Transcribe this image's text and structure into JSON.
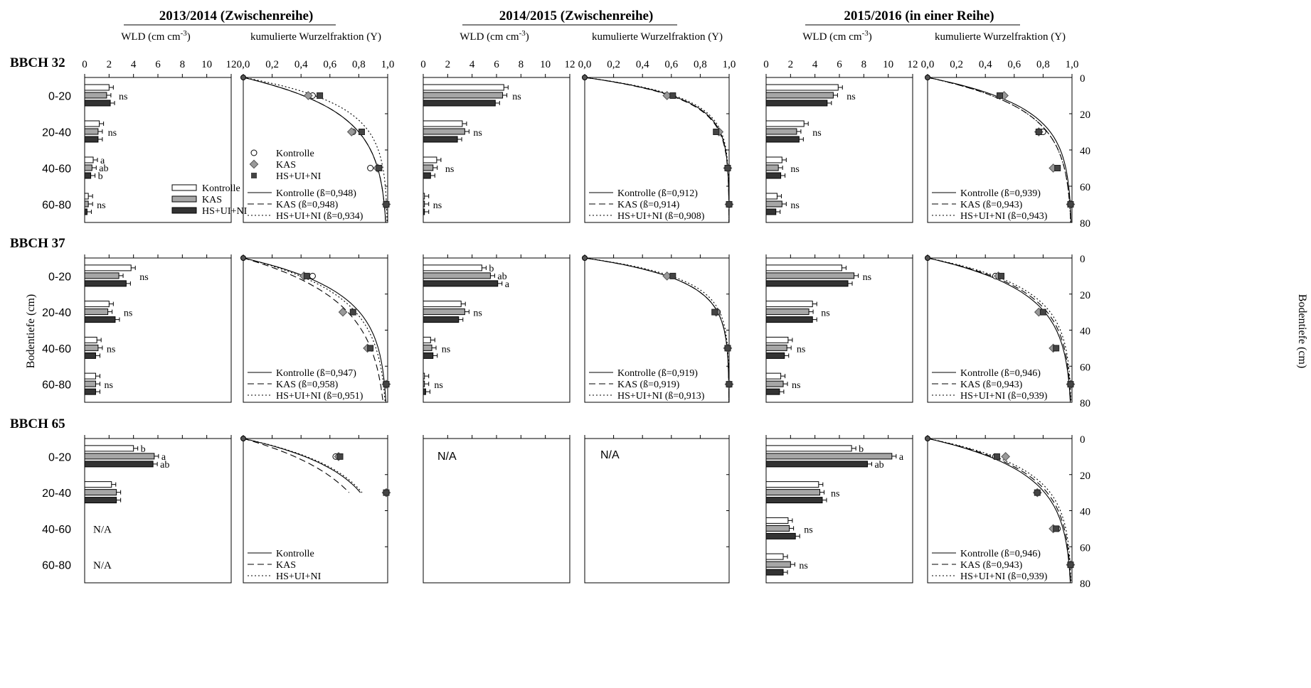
{
  "figure": {
    "seasons": [
      "2013/2014 (Zwischenreihe)",
      "2014/2015 (Zwischenreihe)",
      "2015/2016 (in einer Reihe)"
    ],
    "wld_axis_label": "WLD (cm cm",
    "wld_axis_exp": "-3",
    "wld_axis_close": ")",
    "cum_axis_label": "kumulierte Wurzelfraktion (Y)",
    "stages": [
      "BBCH 32",
      "BBCH 37",
      "BBCH 65"
    ],
    "depth_label_left": "Bodentiefe (cm)",
    "depth_label_right": "Bodentiefe (cm)",
    "depth_categories": [
      "0-20",
      "20-40",
      "40-60",
      "60-80"
    ],
    "wld_ticks": [
      "0",
      "2",
      "4",
      "6",
      "8",
      "10",
      "12"
    ],
    "cum_ticks": [
      "0,0",
      "0,2",
      "0,4",
      "0,6",
      "0,8",
      "1,0"
    ],
    "depth_ticks": [
      "0",
      "20",
      "40",
      "60",
      "80"
    ],
    "na_label": "N/A",
    "treatments": [
      "Kontrolle",
      "KAS",
      "HS+UI+NI"
    ],
    "colors": {
      "Kontrolle": "#ffffff",
      "KAS": "#a6a6a6",
      "HS+UI+NI": "#333333"
    }
  },
  "chart_data": [
    {
      "type": "bar",
      "stage": "BBCH 32",
      "season": "2013/2014 (Zwischenreihe)",
      "orientation": "horizontal",
      "xlim": [
        0,
        12
      ],
      "categories": [
        "0-20",
        "20-40",
        "40-60",
        "60-80"
      ],
      "series": [
        {
          "name": "Kontrolle",
          "values": [
            2.0,
            1.2,
            0.7,
            0.3
          ]
        },
        {
          "name": "KAS",
          "values": [
            1.8,
            1.1,
            0.6,
            0.3
          ]
        },
        {
          "name": "HS+UI+NI",
          "values": [
            2.1,
            1.1,
            0.5,
            0.2
          ]
        }
      ],
      "labels": [
        "ns",
        "ns",
        [
          "a",
          "ab",
          "b"
        ],
        "ns"
      ]
    },
    {
      "type": "line",
      "stage": "BBCH 32",
      "season": "2013/2014 (Zwischenreihe)",
      "xlim": [
        0,
        1
      ],
      "ylim": [
        80,
        0
      ],
      "points": [
        {
          "name": "Kontrolle",
          "x": [
            0.48,
            0.76,
            0.88,
            0.99
          ],
          "y": [
            10,
            30,
            50,
            70
          ]
        },
        {
          "name": "KAS",
          "x": [
            0.45,
            0.75,
            0.93,
            0.99
          ],
          "y": [
            10,
            30,
            50,
            70
          ]
        },
        {
          "name": "HS+UI+NI",
          "x": [
            0.53,
            0.82,
            0.94,
            0.99
          ],
          "y": [
            10,
            30,
            50,
            70
          ]
        }
      ],
      "legend_points": [
        "Kontrolle",
        "KAS",
        "HS+UI+NI"
      ],
      "curves": [
        {
          "name": "Kontrolle",
          "beta": 0.948,
          "label": "Kontrolle (ß=0,948)"
        },
        {
          "name": "KAS",
          "beta": 0.948,
          "label": "KAS (ß=0,948)"
        },
        {
          "name": "HS+UI+NI",
          "beta": 0.934,
          "label": "HS+UI+NI (ß=0,934)"
        }
      ]
    },
    {
      "type": "bar",
      "stage": "BBCH 32",
      "season": "2014/2015 (Zwischenreihe)",
      "orientation": "horizontal",
      "xlim": [
        0,
        12
      ],
      "categories": [
        "0-20",
        "20-40",
        "40-60",
        "60-80"
      ],
      "series": [
        {
          "name": "Kontrolle",
          "values": [
            6.6,
            3.2,
            1.1,
            0.1
          ]
        },
        {
          "name": "KAS",
          "values": [
            6.5,
            3.4,
            0.8,
            0.1
          ]
        },
        {
          "name": "HS+UI+NI",
          "values": [
            5.9,
            2.8,
            0.6,
            0.1
          ]
        }
      ],
      "labels": [
        "ns",
        "ns",
        "ns",
        "ns"
      ]
    },
    {
      "type": "line",
      "stage": "BBCH 32",
      "season": "2014/2015 (Zwischenreihe)",
      "xlim": [
        0,
        1
      ],
      "ylim": [
        80,
        0
      ],
      "points": [
        {
          "name": "Kontrolle",
          "x": [
            0.57,
            0.93,
            0.99,
            1.0
          ],
          "y": [
            10,
            30,
            50,
            70
          ]
        },
        {
          "name": "KAS",
          "x": [
            0.57,
            0.93,
            0.99,
            1.0
          ],
          "y": [
            10,
            30,
            50,
            70
          ]
        },
        {
          "name": "HS+UI+NI",
          "x": [
            0.61,
            0.91,
            0.99,
            1.0
          ],
          "y": [
            10,
            30,
            50,
            70
          ]
        }
      ],
      "curves": [
        {
          "name": "Kontrolle",
          "beta": 0.912,
          "label": "Kontrolle (ß=0,912)"
        },
        {
          "name": "KAS",
          "beta": 0.914,
          "label": "KAS (ß=0,914)"
        },
        {
          "name": "HS+UI+NI",
          "beta": 0.908,
          "label": "HS+UI+NI (ß=0,908)"
        }
      ]
    },
    {
      "type": "bar",
      "stage": "BBCH 32",
      "season": "2015/2016 (in einer Reihe)",
      "orientation": "horizontal",
      "xlim": [
        0,
        12
      ],
      "categories": [
        "0-20",
        "20-40",
        "40-60",
        "60-80"
      ],
      "series": [
        {
          "name": "Kontrolle",
          "values": [
            5.9,
            3.1,
            1.3,
            0.9
          ]
        },
        {
          "name": "KAS",
          "values": [
            5.5,
            2.5,
            1.0,
            1.3
          ]
        },
        {
          "name": "HS+UI+NI",
          "values": [
            5.0,
            2.7,
            1.2,
            0.8
          ]
        }
      ],
      "labels": [
        "ns",
        "ns",
        "ns",
        "ns"
      ]
    },
    {
      "type": "line",
      "stage": "BBCH 32",
      "season": "2015/2016 (in einer Reihe)",
      "xlim": [
        0,
        1
      ],
      "ylim": [
        80,
        0
      ],
      "points": [
        {
          "name": "Kontrolle",
          "x": [
            0.51,
            0.8,
            0.9,
            0.99
          ],
          "y": [
            10,
            30,
            50,
            70
          ]
        },
        {
          "name": "KAS",
          "x": [
            0.53,
            0.77,
            0.87,
            0.99
          ],
          "y": [
            10,
            30,
            50,
            70
          ]
        },
        {
          "name": "HS+UI+NI",
          "x": [
            0.5,
            0.77,
            0.9,
            0.99
          ],
          "y": [
            10,
            30,
            50,
            70
          ]
        }
      ],
      "curves": [
        {
          "name": "Kontrolle",
          "beta": 0.939,
          "label": "Kontrolle (ß=0,939)"
        },
        {
          "name": "KAS",
          "beta": 0.943,
          "label": "KAS (ß=0,943)"
        },
        {
          "name": "HS+UI+NI",
          "beta": 0.943,
          "label": "HS+UI+NI (ß=0,943)"
        }
      ]
    },
    {
      "type": "bar",
      "stage": "BBCH 37",
      "season": "2013/2014 (Zwischenreihe)",
      "orientation": "horizontal",
      "xlim": [
        0,
        12
      ],
      "categories": [
        "0-20",
        "20-40",
        "40-60",
        "60-80"
      ],
      "series": [
        {
          "name": "Kontrolle",
          "values": [
            3.8,
            2.0,
            1.0,
            0.9
          ]
        },
        {
          "name": "KAS",
          "values": [
            2.8,
            1.9,
            1.1,
            0.9
          ]
        },
        {
          "name": "HS+UI+NI",
          "values": [
            3.4,
            2.5,
            0.9,
            0.9
          ]
        }
      ],
      "labels": [
        "ns",
        "ns",
        "ns",
        "ns"
      ]
    },
    {
      "type": "line",
      "stage": "BBCH 37",
      "season": "2013/2014 (Zwischenreihe)",
      "xlim": [
        0,
        1
      ],
      "ylim": [
        80,
        0
      ],
      "points": [
        {
          "name": "Kontrolle",
          "x": [
            0.48,
            0.76,
            0.88,
            0.99
          ],
          "y": [
            10,
            30,
            50,
            70
          ]
        },
        {
          "name": "KAS",
          "x": [
            0.42,
            0.69,
            0.86,
            0.99
          ],
          "y": [
            10,
            30,
            50,
            70
          ]
        },
        {
          "name": "HS+UI+NI",
          "x": [
            0.44,
            0.76,
            0.88,
            0.99
          ],
          "y": [
            10,
            30,
            50,
            70
          ]
        }
      ],
      "curves": [
        {
          "name": "Kontrolle",
          "beta": 0.947,
          "label": "Kontrolle (ß=0,947)"
        },
        {
          "name": "KAS",
          "beta": 0.958,
          "label": "KAS (ß=0,958)"
        },
        {
          "name": "HS+UI+NI",
          "beta": 0.951,
          "label": "HS+UI+NI (ß=0,951)"
        }
      ]
    },
    {
      "type": "bar",
      "stage": "BBCH 37",
      "season": "2014/2015 (Zwischenreihe)",
      "orientation": "horizontal",
      "xlim": [
        0,
        12
      ],
      "categories": [
        "0-20",
        "20-40",
        "40-60",
        "60-80"
      ],
      "series": [
        {
          "name": "Kontrolle",
          "values": [
            4.8,
            3.1,
            0.6,
            0.1
          ]
        },
        {
          "name": "KAS",
          "values": [
            5.5,
            3.4,
            0.7,
            0.1
          ]
        },
        {
          "name": "HS+UI+NI",
          "values": [
            6.1,
            2.9,
            0.8,
            0.2
          ]
        }
      ],
      "labels": [
        [
          "b",
          "ab",
          "a"
        ],
        "ns",
        "ns",
        "ns"
      ]
    },
    {
      "type": "line",
      "stage": "BBCH 37",
      "season": "2014/2015 (Zwischenreihe)",
      "xlim": [
        0,
        1
      ],
      "ylim": [
        80,
        0
      ],
      "points": [
        {
          "name": "Kontrolle",
          "x": [
            0.57,
            0.92,
            0.99,
            1.0
          ],
          "y": [
            10,
            30,
            50,
            70
          ]
        },
        {
          "name": "KAS",
          "x": [
            0.57,
            0.91,
            0.99,
            1.0
          ],
          "y": [
            10,
            30,
            50,
            70
          ]
        },
        {
          "name": "HS+UI+NI",
          "x": [
            0.61,
            0.9,
            0.99,
            1.0
          ],
          "y": [
            10,
            30,
            50,
            70
          ]
        }
      ],
      "curves": [
        {
          "name": "Kontrolle",
          "beta": 0.919,
          "label": "Kontrolle (ß=0,919)"
        },
        {
          "name": "KAS",
          "beta": 0.919,
          "label": "KAS (ß=0,919)"
        },
        {
          "name": "HS+UI+NI",
          "beta": 0.913,
          "label": "HS+UI+NI (ß=0,913)"
        }
      ]
    },
    {
      "type": "bar",
      "stage": "BBCH 37",
      "season": "2015/2016 (in einer Reihe)",
      "orientation": "horizontal",
      "xlim": [
        0,
        12
      ],
      "categories": [
        "0-20",
        "20-40",
        "40-60",
        "60-80"
      ],
      "series": [
        {
          "name": "Kontrolle",
          "values": [
            6.2,
            3.8,
            1.8,
            1.2
          ]
        },
        {
          "name": "KAS",
          "values": [
            7.2,
            3.5,
            1.7,
            1.4
          ]
        },
        {
          "name": "HS+UI+NI",
          "values": [
            6.7,
            3.8,
            1.5,
            1.1
          ]
        }
      ],
      "labels": [
        "ns",
        "ns",
        "ns",
        "ns"
      ]
    },
    {
      "type": "line",
      "stage": "BBCH 37",
      "season": "2015/2016 (in einer Reihe)",
      "xlim": [
        0,
        1
      ],
      "ylim": [
        80,
        0
      ],
      "points": [
        {
          "name": "Kontrolle",
          "x": [
            0.47,
            0.79,
            0.89,
            0.99
          ],
          "y": [
            10,
            30,
            50,
            70
          ]
        },
        {
          "name": "KAS",
          "x": [
            0.49,
            0.77,
            0.87,
            0.99
          ],
          "y": [
            10,
            30,
            50,
            70
          ]
        },
        {
          "name": "HS+UI+NI",
          "x": [
            0.51,
            0.8,
            0.89,
            0.99
          ],
          "y": [
            10,
            30,
            50,
            70
          ]
        }
      ],
      "curves": [
        {
          "name": "Kontrolle",
          "beta": 0.946,
          "label": "Kontrolle (ß=0,946)"
        },
        {
          "name": "KAS",
          "beta": 0.943,
          "label": "KAS (ß=0,943)"
        },
        {
          "name": "HS+UI+NI",
          "beta": 0.939,
          "label": "HS+UI+NI (ß=0,939)"
        }
      ]
    },
    {
      "type": "bar",
      "stage": "BBCH 65",
      "season": "2013/2014 (Zwischenreihe)",
      "orientation": "horizontal",
      "xlim": [
        0,
        12
      ],
      "categories": [
        "0-20",
        "20-40",
        "40-60",
        "60-80"
      ],
      "series": [
        {
          "name": "Kontrolle",
          "values": [
            4.0,
            2.2,
            null,
            null
          ]
        },
        {
          "name": "KAS",
          "values": [
            5.7,
            2.6,
            null,
            null
          ]
        },
        {
          "name": "HS+UI+NI",
          "values": [
            5.6,
            2.6,
            null,
            null
          ]
        }
      ],
      "labels": [
        [
          "b",
          "a",
          "ab"
        ],
        "",
        null,
        null
      ]
    },
    {
      "type": "line",
      "stage": "BBCH 65",
      "season": "2013/2014 (Zwischenreihe)",
      "xlim": [
        0,
        1
      ],
      "ylim": [
        80,
        0
      ],
      "points": [
        {
          "name": "Kontrolle",
          "x": [
            0.64,
            0.99
          ],
          "y": [
            10,
            30
          ]
        },
        {
          "name": "KAS",
          "x": [
            0.66,
            0.99
          ],
          "y": [
            10,
            30
          ]
        },
        {
          "name": "HS+UI+NI",
          "x": [
            0.67,
            0.99
          ],
          "y": [
            10,
            30
          ]
        }
      ],
      "curves": [
        {
          "name": "Kontrolle",
          "beta": null,
          "label": "Kontrolle"
        },
        {
          "name": "KAS",
          "beta": null,
          "label": "KAS"
        },
        {
          "name": "HS+UI+NI",
          "beta": null,
          "label": "HS+UI+NI"
        }
      ]
    },
    {
      "type": "bar",
      "stage": "BBCH 65",
      "season": "2014/2015 (Zwischenreihe)",
      "xlim": [
        0,
        12
      ],
      "no_data": true
    },
    {
      "type": "line",
      "stage": "BBCH 65",
      "season": "2014/2015 (Zwischenreihe)",
      "xlim": [
        0,
        1
      ],
      "ylim": [
        80,
        0
      ],
      "no_data": true
    },
    {
      "type": "bar",
      "stage": "BBCH 65",
      "season": "2015/2016 (in einer Reihe)",
      "orientation": "horizontal",
      "xlim": [
        0,
        12
      ],
      "categories": [
        "0-20",
        "20-40",
        "40-60",
        "60-80"
      ],
      "series": [
        {
          "name": "Kontrolle",
          "values": [
            7.0,
            4.3,
            1.8,
            1.4
          ]
        },
        {
          "name": "KAS",
          "values": [
            10.3,
            4.4,
            1.9,
            2.0
          ]
        },
        {
          "name": "HS+UI+NI",
          "values": [
            8.3,
            4.6,
            2.4,
            1.4
          ]
        }
      ],
      "labels": [
        [
          "b",
          "a",
          "ab"
        ],
        "ns",
        "ns",
        "ns"
      ]
    },
    {
      "type": "line",
      "stage": "BBCH 65",
      "season": "2015/2016 (in einer Reihe)",
      "xlim": [
        0,
        1
      ],
      "ylim": [
        80,
        0
      ],
      "points": [
        {
          "name": "Kontrolle",
          "x": [
            0.47,
            0.76,
            0.9,
            0.99
          ],
          "y": [
            10,
            30,
            50,
            70
          ]
        },
        {
          "name": "KAS",
          "x": [
            0.54,
            0.76,
            0.87,
            0.99
          ],
          "y": [
            10,
            30,
            50,
            70
          ]
        },
        {
          "name": "HS+UI+NI",
          "x": [
            0.48,
            0.76,
            0.89,
            0.99
          ],
          "y": [
            10,
            30,
            50,
            70
          ]
        }
      ],
      "curves": [
        {
          "name": "Kontrolle",
          "beta": 0.946,
          "label": "Kontrolle (ß=0,946)"
        },
        {
          "name": "KAS",
          "beta": 0.943,
          "label": "KAS (ß=0,943)"
        },
        {
          "name": "HS+UI+NI",
          "beta": 0.939,
          "label": "HS+UI+NI (ß=0,939)"
        }
      ]
    }
  ]
}
